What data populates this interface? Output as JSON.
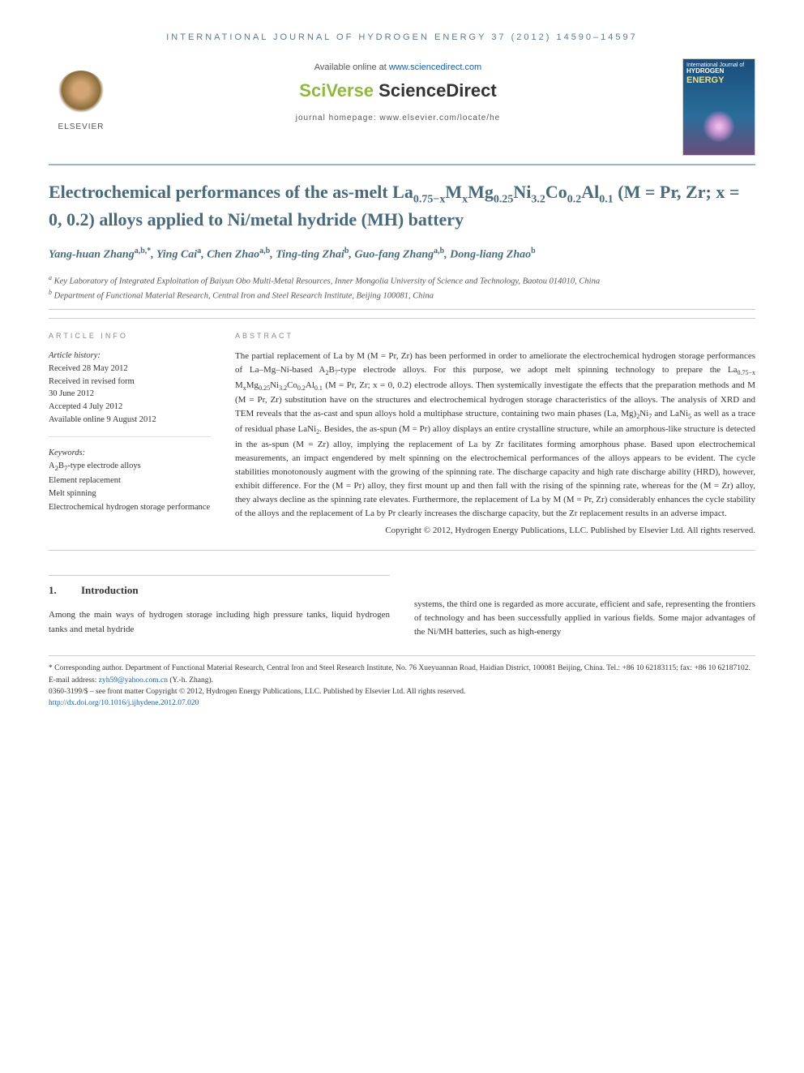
{
  "journal_header": "INTERNATIONAL JOURNAL OF HYDROGEN ENERGY 37 (2012) 14590–14597",
  "publisher_logo_text": "ELSEVIER",
  "available_text": "Available online at ",
  "available_link": "www.sciencedirect.com",
  "platform_brand_a": "SciVerse ",
  "platform_brand_b": "ScienceDirect",
  "homepage_text": "journal homepage: www.elsevier.com/locate/he",
  "cover": {
    "line1": "International Journal of",
    "line2": "HYDROGEN",
    "line3": "ENERGY"
  },
  "title_html": "Electrochemical performances of the as-melt La<sub>0.75−x</sub>M<sub>x</sub>Mg<sub>0.25</sub>Ni<sub>3.2</sub>Co<sub>0.2</sub>Al<sub>0.1</sub> (M = Pr, Zr; x = 0, 0.2) alloys applied to Ni/metal hydride (MH) battery",
  "authors_html": "Yang-huan Zhang<sup>a,b,*</sup>, Ying Cai<sup>a</sup>, Chen Zhao<sup>a,b</sup>, Ting-ting Zhai<sup>b</sup>, Guo-fang Zhang<sup>a,b</sup>, Dong-liang Zhao<sup>b</sup>",
  "affiliations": {
    "a": "Key Laboratory of Integrated Exploitation of Baiyun Obo Multi-Metal Resources, Inner Mongolia University of Science and Technology, Baotou 014010, China",
    "b": "Department of Functional Material Research, Central Iron and Steel Research Institute, Beijing 100081, China"
  },
  "info_label": "ARTICLE INFO",
  "abstract_label": "ABSTRACT",
  "history": {
    "label": "Article history:",
    "received": "Received 28 May 2012",
    "revised_a": "Received in revised form",
    "revised_b": "30 June 2012",
    "accepted": "Accepted 4 July 2012",
    "online": "Available online 9 August 2012"
  },
  "keywords": {
    "label": "Keywords:",
    "k1_html": "A<sub>2</sub>B<sub>7</sub>-type electrode alloys",
    "k2": "Element replacement",
    "k3": "Melt spinning",
    "k4": "Electrochemical hydrogen storage performance"
  },
  "abstract_html": "The partial replacement of La by M (M = Pr, Zr) has been performed in order to ameliorate the electrochemical hydrogen storage performances of La–Mg–Ni-based A<sub>2</sub>B<sub>7</sub>-type electrode alloys. For this purpose, we adopt melt spinning technology to prepare the La<sub>0.75−x</sub> M<sub>x</sub>Mg<sub>0.25</sub>Ni<sub>3.2</sub>Co<sub>0.2</sub>Al<sub>0.1</sub> (M = Pr, Zr; x = 0, 0.2) electrode alloys. Then systemically investigate the effects that the preparation methods and M (M = Pr, Zr) substitution have on the structures and electrochemical hydrogen storage characteristics of the alloys. The analysis of XRD and TEM reveals that the as-cast and spun alloys hold a multiphase structure, containing two main phases (La, Mg)<sub>2</sub>Ni<sub>7</sub> and LaNi<sub>5</sub> as well as a trace of residual phase LaNi<sub>2</sub>. Besides, the as-spun (M = Pr) alloy displays an entire crystalline structure, while an amorphous-like structure is detected in the as-spun (M = Zr) alloy, implying the replacement of La by Zr facilitates forming amorphous phase. Based upon electrochemical measurements, an impact engendered by melt spinning on the electrochemical performances of the alloys appears to be evident. The cycle stabilities monotonously augment with the growing of the spinning rate. The discharge capacity and high rate discharge ability (HRD), however, exhibit difference. For the (M = Pr) alloy, they first mount up and then fall with the rising of the spinning rate, whereas for the (M = Zr) alloy, they always decline as the spinning rate elevates. Furthermore, the replacement of La by M (M = Pr, Zr) considerably enhances the cycle stability of the alloys and the replacement of La by Pr clearly increases the discharge capacity, but the Zr replacement results in an adverse impact.",
  "copyright": "Copyright © 2012, Hydrogen Energy Publications, LLC. Published by Elsevier Ltd. All rights reserved.",
  "intro": {
    "num": "1.",
    "heading": "Introduction",
    "col1": "Among the main ways of hydrogen storage including high pressure tanks, liquid hydrogen tanks and metal hydride",
    "col2": "systems, the third one is regarded as more accurate, efficient and safe, representing the frontiers of technology and has been successfully applied in various fields. Some major advantages of the Ni/MH batteries, such as high-energy"
  },
  "footer": {
    "corresponding": "* Corresponding author. Department of Functional Material Research, Central Iron and Steel Research Institute, No. 76 Xueyuannan Road, Haidian District, 100081 Beijing, China. Tel.: +86 10 62183115; fax: +86 10 62187102.",
    "email_label": "E-mail address: ",
    "email_link": "zyh59@yahoo.com.cn",
    "email_suffix": " (Y.-h. Zhang).",
    "issn": "0360-3199/$ – see front matter Copyright © 2012, Hydrogen Energy Publications, LLC. Published by Elsevier Ltd. All rights reserved.",
    "doi_label": "http://dx.doi.org/",
    "doi_link": "10.1016/j.ijhydene.2012.07.020"
  }
}
